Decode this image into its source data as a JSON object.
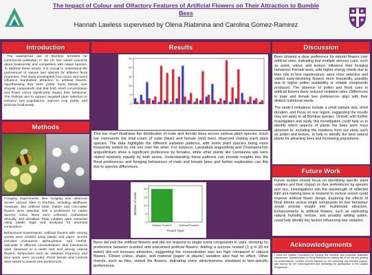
{
  "colors": {
    "background": "#5b2a62",
    "heading": "#e1262d",
    "title": "#5f2b82"
  },
  "header": {
    "title_lines": [
      "The Impact of Colour and Olfactory Features of Artificial Flowers on Their Attraction to Bumble",
      "Bees"
    ],
    "subtitle": "Hannah Lawless supervised by Olena Riabinina and Carolina Gomez-Ramirez",
    "left_logo_icon": "organisation-logo-icon",
    "right_logo_icon": "university-crest-icon"
  },
  "introduction": {
    "heading": "Introduction",
    "text": "The widespread use of Bombus terrestris for commercial pollination in the UK has raised concerns about biodiversity and competition with native species. To address these issues, it is crucial to understand the preferences of various bee species for different floral properties. This study investigates how colour and scent influence bumblebee attraction to artificial flowers, hypothesising that bees prefer floral blends over singular compounds and that both scent concentration and flower colour significantly impact their behaviour. The findings aim to support targeted plant selection to enhance bee populations, improve crop yields, and promote biodiversity."
  },
  "methods": {
    "heading": "Methods",
    "foraging": "Foraging Experiments: Bee foraging was observed across various sites in Durham, including wildflower meadows and artificial beds. Native and non-native flowers were selected, with a preference for native species noted. Bees were collected, euthanised ethically, and identified. Plant volatiles were extracted using plastic bags and analysed for chemical composition.",
    "behavioural": "Behavioural Experiments: Artificial flowers with varying scents were created using plastic and paper. Scents included d-limonene, alpha-pinene, and methyl-salicylate in different concentrations. Bee interactions were observed in a mesh tent and among natural flowers. Responses such as visitation frequency and time spent were recorded. Floral blends and controls were tested to assess bee preferences."
  },
  "results": {
    "heading": "Results",
    "chart_caption": "This bar chart illustrates the distribution of male and female bees across various plant species. Each bar represents the total count of male (blue) and female (red) bees observed visiting each plant species. The data highlights the different visitation patterns, with some plant species being more frequently visited by one sex over the other. For instance, Lavandula angustifolia and Chamaenerion angustifolium show a significant preference by females, while other plants like Centaurea spp were visited relatively equally by both sexes. Understanding these patterns can provide insights into the floral preferences and foraging behaviours of male and female bees and further exploration can link this to species differences.",
    "bottom_text": "Bees did visit the artificial flowers and did not respond to single scent compounds in vials, showing no preference between scented and unscented artificial flowers. Adding a sucrose reward (1 g in 20 ml water) did not increase attraction, suggesting the concentration was too high compared to natural flowers. Flower colour, shape, and material (paper or plastic) variation also had no effect. Other insects, such as flies, visited the flowers, indicating some attractiveness unrelated to bee-specific preferences."
  },
  "discussion": {
    "heading": "Discussion",
    "paragraphs": [
      "Bees showed a clear preference for natural flowers over artificial ones, indicating that multiple sensory cues, such as scent, colour, and texture, influence their foraging behaviour. Female bees, with higher energy needs due to their role in hive maintenance, were more selective and visited early-blooming flowers more frequently, possibly due to higher pollen availability or volatile compounds produced. The absence of pollen and floral cues in artificial flowers likely reduced visitation rates. Differences in male and female bee preferences align with their distinct nutritional needs.",
      "The study's limitations include a small sample size, short duration, and focus on one region, suggesting the results may not apply to all Bombus species. Overall, with further investigation and study, this investigation could help us to identify which aspects of plants the bees were most attracted to, including the notations from our study such as pollen and texture, to help to identify the best natural plants for attracting bees and increasing populations."
    ]
  },
  "future_work": {
    "heading": "Future Work",
    "text": "Future studies should focus on identifying specific plant volatiles and their impact on bee preferences by species and sex. Investigations into the wavelength of reflected light and training bees to respond to various scents could improve artificial flower design. Exploring the effects of floral blends versus single compounds on bee behaviour would provide insight into multimodal attraction. Enhancements to artificial flowers, such as replicating natural humidity, texture, and possibly adding pollen, could help identify key factors influencing bee visitation."
  },
  "acknowledgements": {
    "heading": "Acknowledgements",
    "text": "I thank the Laidlaw Foundation for funding this research and providing invaluable experiences. Special thanks to Olena Riabinina for hosting me in her lab and guiding my presentations, Carolina Gomez-Ramirez for her mentoring and relevant support, and Gaurav for her encouragement and facilitating my participation in the Laidlaw Programme."
  },
  "chart_data": [
    {
      "type": "bar",
      "ylim": [
        0,
        25
      ],
      "yticks": [
        0,
        5,
        10,
        15,
        20,
        25
      ],
      "series": [
        {
          "color": "#2f3fd0",
          "values": [
            3,
            5,
            12,
            2,
            1,
            2,
            1,
            3,
            21,
            2,
            1,
            2,
            4,
            11,
            1,
            2,
            1,
            3,
            6,
            1,
            2,
            1
          ]
        },
        {
          "color": "#e8232b",
          "values": [
            1,
            2,
            3,
            4,
            21,
            17,
            19,
            15,
            4,
            6,
            3,
            18,
            5,
            2,
            3,
            24,
            9,
            19,
            2,
            4,
            3,
            2
          ]
        }
      ]
    },
    {
      "type": "bar",
      "categories": [
        "Natural Flowers",
        "Artificial Flowers"
      ],
      "values": [
        20,
        0
      ],
      "color": "#2ca02c",
      "xlabel": "Flower Type",
      "ylabel": "Number of Visits",
      "ylim": [
        0,
        22
      ],
      "yticks": [
        0,
        5,
        10,
        15,
        20
      ]
    }
  ]
}
